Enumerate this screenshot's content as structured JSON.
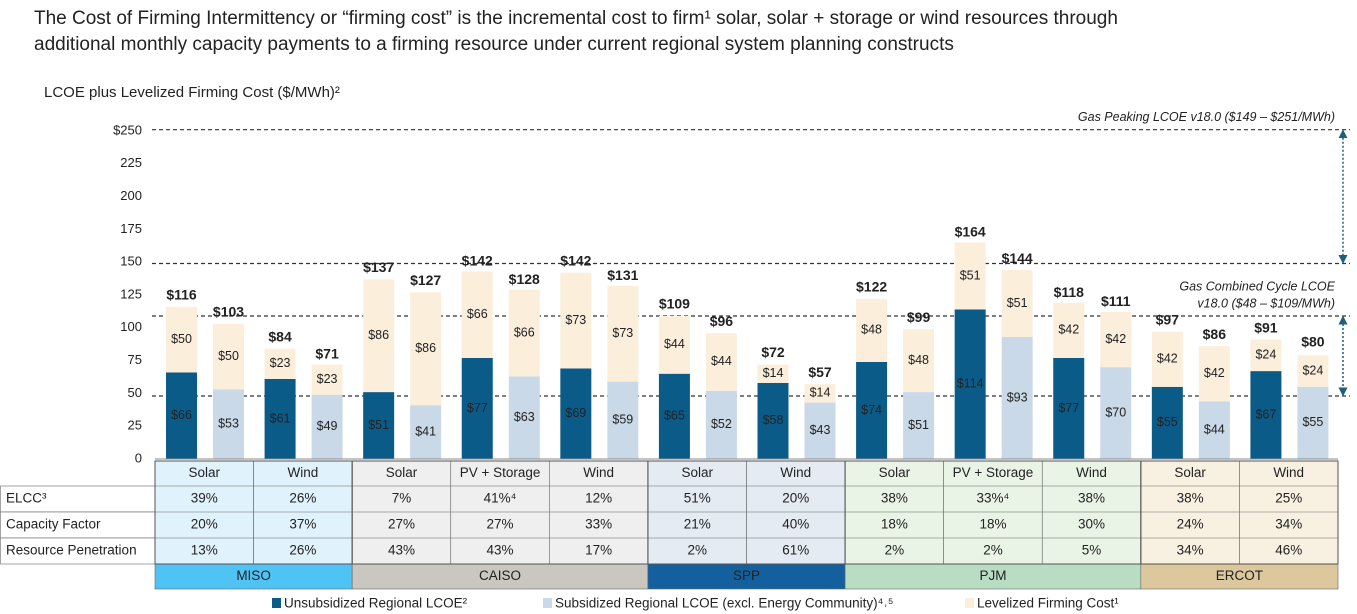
{
  "chart_data": {
    "type": "stacked_bar",
    "title_lines": [
      "The Cost of Firming Intermittency or “firming cost” is the incremental cost to firm¹ solar, solar + storage or wind resources through",
      "additional monthly capacity payments to a firming resource under current regional system planning constructs"
    ],
    "subtitle": "LCOE plus Levelized Firming Cost ($/MWh)²",
    "regions": [
      {
        "name": "MISO",
        "color": "#4fc3f3",
        "tint": "#e0f3fc",
        "categories": [
          "Solar",
          "Wind"
        ]
      },
      {
        "name": "CAISO",
        "color": "#cac6c0",
        "tint": "#efefef",
        "categories": [
          "Solar",
          "PV + Storage",
          "Wind"
        ]
      },
      {
        "name": "SPP",
        "color": "#14609f",
        "tint": "#e4ebf3",
        "categories": [
          "Solar",
          "Wind"
        ]
      },
      {
        "name": "PJM",
        "color": "#b9ddc2",
        "tint": "#eaf4e6",
        "categories": [
          "Solar",
          "PV + Storage",
          "Wind"
        ]
      },
      {
        "name": "ERCOT",
        "color": "#dcc89c",
        "tint": "#f8f0e1",
        "categories": [
          "Solar",
          "Wind"
        ]
      }
    ],
    "series": [
      {
        "name": "Unsubsidized Regional LCOE²",
        "color": "#0b5b89",
        "values": [
          66,
          61,
          51,
          77,
          69,
          65,
          58,
          74,
          114,
          77,
          55,
          67
        ],
        "value_labels": [
          "$66",
          "$61",
          "$51",
          "$77",
          "$69",
          "$65",
          "$58",
          "$74",
          "$114",
          "$77",
          "$55",
          "$67"
        ],
        "totals": [
          116,
          84,
          137,
          142,
          142,
          109,
          72,
          122,
          164,
          118,
          97,
          91
        ],
        "total_labels": [
          "$116",
          "$84",
          "$137",
          "$142",
          "$142",
          "$109",
          "$72",
          "$122",
          "$164",
          "$118",
          "$97",
          "$91"
        ]
      },
      {
        "name": "Subsidized Regional LCOE (excl. Energy Community)⁴˒⁵",
        "color": "#c9d9e7",
        "values": [
          53,
          49,
          41,
          63,
          59,
          52,
          43,
          51,
          93,
          70,
          44,
          55
        ],
        "value_labels": [
          "$53",
          "$49",
          "$41",
          "$63",
          "$59",
          "$52",
          "$43",
          "$51",
          "$93",
          "$70",
          "$44",
          "$55"
        ],
        "totals": [
          103,
          71,
          127,
          128,
          131,
          96,
          57,
          99,
          144,
          111,
          86,
          80
        ],
        "total_labels": [
          "$103",
          "$71",
          "$127",
          "$128",
          "$131",
          "$96",
          "$57",
          "$99",
          "$144",
          "$111",
          "$86",
          "$80"
        ]
      },
      {
        "name": "Levelized Firming Cost¹",
        "color": "#fbefdc",
        "values": [
          50,
          23,
          86,
          66,
          73,
          44,
          14,
          48,
          51,
          42,
          42,
          24
        ],
        "value_labels": [
          "$50",
          "$23",
          "$86",
          "$66",
          "$73",
          "$44",
          "$14",
          "$48",
          "$51",
          "$42",
          "$42",
          "$24"
        ]
      }
    ],
    "ylim": [
      0,
      250
    ],
    "yticks": [
      0,
      25,
      50,
      75,
      100,
      125,
      150,
      175,
      200,
      225,
      {
        "value": 250,
        "label": "$250"
      }
    ],
    "reference_ranges": [
      {
        "lines": [
          "Gas Peaking LCOE v18.0 ($149 – $251/MWh)"
        ],
        "range": [
          149,
          251
        ]
      },
      {
        "lines": [
          "Gas Combined Cycle LCOE",
          "v18.0 ($48 – $109/MWh)"
        ],
        "range": [
          48,
          109
        ]
      }
    ],
    "table_rows": [
      {
        "label": "ELCC³",
        "values": [
          "39%",
          "26%",
          "7%",
          "41%⁴",
          "12%",
          "51%",
          "20%",
          "38%",
          "33%⁴",
          "38%",
          "38%",
          "25%"
        ]
      },
      {
        "label": "Capacity Factor",
        "values": [
          "20%",
          "37%",
          "27%",
          "27%",
          "33%",
          "21%",
          "40%",
          "18%",
          "18%",
          "30%",
          "24%",
          "34%"
        ]
      },
      {
        "label": "Resource Penetration",
        "values": [
          "13%",
          "26%",
          "43%",
          "43%",
          "17%",
          "2%",
          "61%",
          "2%",
          "2%",
          "5%",
          "34%",
          "46%"
        ]
      }
    ]
  }
}
